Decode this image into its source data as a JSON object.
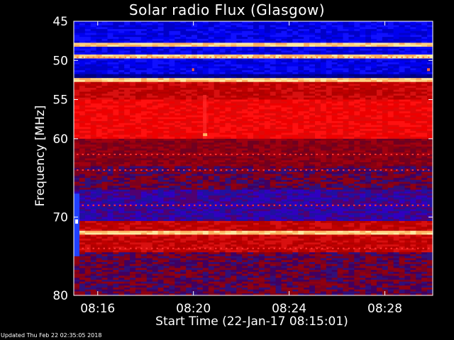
{
  "footer": "Updated Thu Feb 22 02:35:05 2018",
  "chart_data": {
    "type": "heatmap",
    "title": "Solar radio Flux (Glasgow)",
    "xlabel": "Start Time (22-Jan-17 08:15:01)",
    "ylabel": "Frequency [MHz]",
    "xlim_minutes_after_0815": [
      0.0,
      15.0
    ],
    "xticks": [
      {
        "minutes": 1,
        "label": "08:16"
      },
      {
        "minutes": 5,
        "label": "08:20"
      },
      {
        "minutes": 9,
        "label": "08:24"
      },
      {
        "minutes": 13,
        "label": "08:28"
      }
    ],
    "ylim": [
      45,
      80
    ],
    "yticks": [
      45,
      50,
      55,
      60,
      70,
      80
    ],
    "grid": false,
    "colors": {
      "background": "#000000",
      "low": "#0000ff",
      "mid": "#cc0000",
      "high": "#ffe080"
    },
    "bands": [
      {
        "from": 45.0,
        "to": 47.8,
        "level": "low"
      },
      {
        "from": 47.8,
        "to": 48.2,
        "level": "high"
      },
      {
        "from": 48.2,
        "to": 49.3,
        "level": "low"
      },
      {
        "from": 49.3,
        "to": 49.8,
        "level": "high"
      },
      {
        "from": 49.8,
        "to": 51.8,
        "level": "low"
      },
      {
        "from": 51.8,
        "to": 52.3,
        "level": "low-dark"
      },
      {
        "from": 52.3,
        "to": 52.8,
        "level": "high"
      },
      {
        "from": 52.8,
        "to": 55.0,
        "level": "mid"
      },
      {
        "from": 55.0,
        "to": 60.0,
        "level": "mid-bright"
      },
      {
        "from": 60.0,
        "to": 63.5,
        "level": "mid-dark"
      },
      {
        "from": 63.5,
        "to": 66.5,
        "level": "mixed"
      },
      {
        "from": 66.5,
        "to": 70.5,
        "level": "low-mid"
      },
      {
        "from": 70.5,
        "to": 71.8,
        "level": "mid"
      },
      {
        "from": 71.8,
        "to": 72.3,
        "level": "high"
      },
      {
        "from": 72.3,
        "to": 74.5,
        "level": "mid"
      },
      {
        "from": 74.5,
        "to": 80.0,
        "level": "mixed"
      }
    ]
  }
}
